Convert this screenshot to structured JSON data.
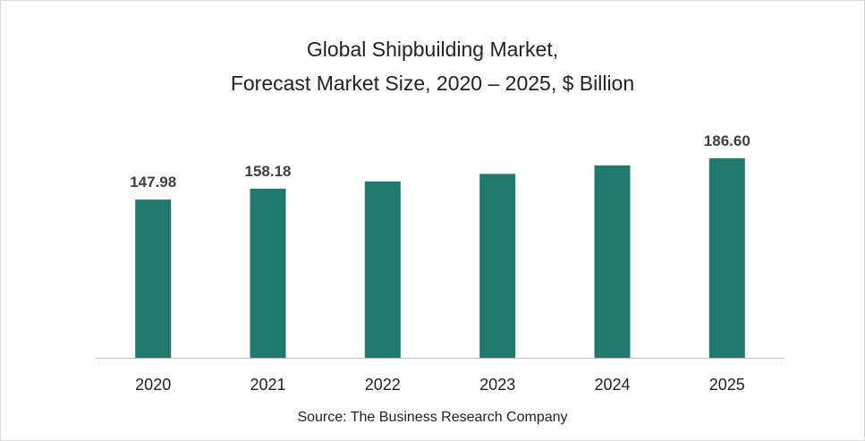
{
  "chart_data": {
    "type": "bar",
    "title_lines": [
      "Global Shipbuilding Market,",
      "Forecast Market Size, 2020 – 2025, $ Billion"
    ],
    "categories": [
      "2020",
      "2021",
      "2022",
      "2023",
      "2024",
      "2025"
    ],
    "values": [
      147.98,
      158.18,
      165.0,
      172.0,
      180.0,
      186.6
    ],
    "data_labels": [
      "147.98",
      "158.18",
      "",
      "",
      "",
      "186.60"
    ],
    "xlabel": "",
    "ylabel": "",
    "ylim": [
      0,
      210
    ],
    "grid": false,
    "legend": "none",
    "bar_color": "#1f7a6c"
  },
  "source": "Source: The Business Research Company"
}
